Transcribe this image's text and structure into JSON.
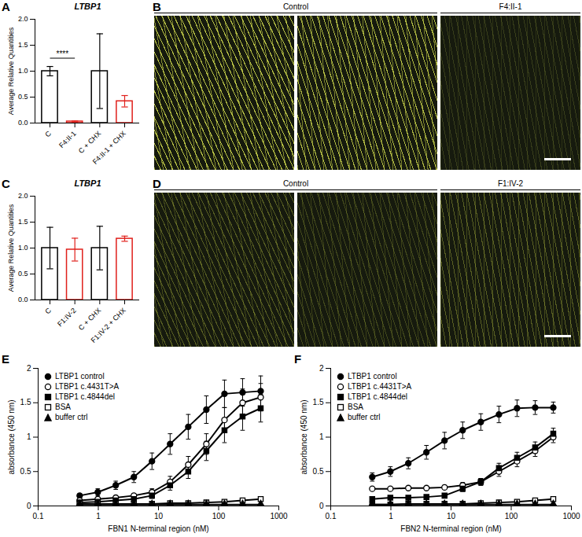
{
  "chart_data": [
    {
      "panel": "A",
      "type": "bar",
      "title": "LTBP1",
      "y_label": "Average Relative Quantities",
      "categories": [
        "C",
        "F4:II-1",
        "C + CHX",
        "F4:II-1 + CHX"
      ],
      "values": [
        1.0,
        0.03,
        1.0,
        0.42
      ],
      "errors": [
        0.09,
        0.01,
        0.72,
        0.11
      ],
      "colors": [
        "#000000",
        "#e0201b",
        "#000000",
        "#e0201b"
      ],
      "ylim": [
        0,
        2
      ],
      "yticks": [
        {
          "value": 0,
          "label": "0.0"
        },
        {
          "value": 0.5,
          "label": "0.5"
        },
        {
          "value": 1,
          "label": "1.0"
        },
        {
          "value": 1.5,
          "label": "1.5"
        },
        {
          "value": 2,
          "label": "2.0"
        }
      ],
      "annotations": [
        {
          "text": "****",
          "from": "C",
          "to": "F4:II-1",
          "y": 1.25
        }
      ]
    },
    {
      "panel": "B",
      "type": "image",
      "groups": [
        {
          "label": "Control",
          "images": 2
        },
        {
          "label": "F4:II-1",
          "images": 1
        }
      ]
    },
    {
      "panel": "C",
      "type": "bar",
      "title": "LTBP1",
      "y_label": "Average Relative Quantities",
      "categories": [
        "C",
        "F1:IV-2",
        "C + CHX",
        "F1:IV-2 + CHX"
      ],
      "values": [
        1.0,
        0.97,
        1.0,
        1.18
      ],
      "errors": [
        0.4,
        0.22,
        0.42,
        0.05
      ],
      "colors": [
        "#000000",
        "#e0201b",
        "#000000",
        "#e0201b"
      ],
      "ylim": [
        0,
        2
      ],
      "yticks": [
        {
          "value": 0,
          "label": "0.0"
        },
        {
          "value": 0.5,
          "label": "0.5"
        },
        {
          "value": 1,
          "label": "1.0"
        },
        {
          "value": 1.5,
          "label": "1.5"
        },
        {
          "value": 2,
          "label": "2.0"
        }
      ]
    },
    {
      "panel": "D",
      "type": "image",
      "groups": [
        {
          "label": "Control",
          "images": 2
        },
        {
          "label": "F1:IV-2",
          "images": 1
        }
      ]
    },
    {
      "panel": "E",
      "type": "line",
      "x_label": "FBN1 N-terminal region (nM)",
      "y_label": "absorbance (450 nm)",
      "log": "x",
      "xlim": [
        0.1,
        1000
      ],
      "xticks": [
        0.1,
        1,
        10,
        100,
        1000
      ],
      "ylim": [
        0,
        2
      ],
      "yticks": [
        0,
        0.5,
        1,
        1.5,
        2
      ],
      "legend": "top-left",
      "x": [
        0.49,
        0.98,
        1.95,
        3.9,
        7.8,
        15.6,
        31.25,
        62.5,
        125,
        250,
        500
      ],
      "series": [
        {
          "name": "LTBP1 control",
          "marker": "circle",
          "values": [
            0.15,
            0.2,
            0.3,
            0.42,
            0.65,
            0.9,
            1.15,
            1.4,
            1.63,
            1.65,
            1.67
          ],
          "errors": [
            0.03,
            0.05,
            0.06,
            0.08,
            0.12,
            0.15,
            0.18,
            0.2,
            0.2,
            0.2,
            0.22
          ]
        },
        {
          "name": "LTBP1 c.4431T>A",
          "marker": "circle-open",
          "values": [
            0.08,
            0.1,
            0.12,
            0.15,
            0.2,
            0.35,
            0.6,
            0.9,
            1.25,
            1.5,
            1.58
          ],
          "errors": [
            0.02,
            0.02,
            0.03,
            0.03,
            0.05,
            0.08,
            0.12,
            0.15,
            0.18,
            0.2,
            0.2
          ]
        },
        {
          "name": "LTBP1 c.4844del",
          "marker": "square",
          "values": [
            0.05,
            0.06,
            0.08,
            0.1,
            0.15,
            0.3,
            0.5,
            0.8,
            1.1,
            1.3,
            1.42
          ],
          "errors": [
            0.02,
            0.02,
            0.02,
            0.03,
            0.04,
            0.07,
            0.1,
            0.14,
            0.18,
            0.2,
            0.2
          ]
        },
        {
          "name": "BSA",
          "marker": "square-open",
          "values": [
            0.03,
            0.03,
            0.03,
            0.03,
            0.03,
            0.04,
            0.04,
            0.05,
            0.06,
            0.08,
            0.1
          ],
          "errors": [
            0.01,
            0.01,
            0.01,
            0.01,
            0.01,
            0.01,
            0.01,
            0.01,
            0.01,
            0.02,
            0.02
          ]
        },
        {
          "name": "buffer ctrl",
          "marker": "triangle",
          "values": [
            0.02,
            0.02,
            0.02,
            0.02,
            0.02,
            0.02,
            0.02,
            0.02,
            0.02,
            0.02,
            0.02
          ],
          "errors": [
            0.005,
            0.005,
            0.005,
            0.005,
            0.005,
            0.005,
            0.005,
            0.005,
            0.005,
            0.005,
            0.005
          ]
        }
      ]
    },
    {
      "panel": "F",
      "type": "line",
      "x_label": "FBN2 N-terminal region (nM)",
      "y_label": "absorbance (450 nm)",
      "log": "x",
      "xlim": [
        0.1,
        1000
      ],
      "xticks": [
        0.1,
        1,
        10,
        100,
        1000
      ],
      "ylim": [
        0,
        2
      ],
      "yticks": [
        0,
        0.5,
        1,
        1.5,
        2
      ],
      "legend": "top-left",
      "x": [
        0.49,
        0.98,
        1.95,
        3.9,
        7.8,
        15.6,
        31.25,
        62.5,
        125,
        250,
        500
      ],
      "series": [
        {
          "name": "LTBP1 control",
          "marker": "circle",
          "values": [
            0.42,
            0.5,
            0.62,
            0.78,
            0.95,
            1.1,
            1.22,
            1.33,
            1.42,
            1.43,
            1.43
          ],
          "errors": [
            0.06,
            0.07,
            0.08,
            0.1,
            0.12,
            0.12,
            0.12,
            0.12,
            0.12,
            0.1,
            0.08
          ]
        },
        {
          "name": "LTBP1 c.4431T>A",
          "marker": "circle-open",
          "values": [
            0.25,
            0.25,
            0.26,
            0.26,
            0.27,
            0.3,
            0.35,
            0.5,
            0.65,
            0.8,
            1.0
          ],
          "errors": [
            0.02,
            0.02,
            0.02,
            0.02,
            0.03,
            0.04,
            0.05,
            0.07,
            0.08,
            0.08,
            0.08
          ]
        },
        {
          "name": "LTBP1 c.4844del",
          "marker": "square",
          "values": [
            0.1,
            0.12,
            0.12,
            0.13,
            0.15,
            0.25,
            0.35,
            0.55,
            0.7,
            0.85,
            1.05
          ],
          "errors": [
            0.02,
            0.02,
            0.02,
            0.02,
            0.03,
            0.04,
            0.05,
            0.07,
            0.08,
            0.08,
            0.08
          ]
        },
        {
          "name": "BSA",
          "marker": "square-open",
          "values": [
            0.02,
            0.02,
            0.03,
            0.03,
            0.03,
            0.03,
            0.04,
            0.05,
            0.06,
            0.08,
            0.1
          ],
          "errors": [
            0.01,
            0.01,
            0.01,
            0.01,
            0.01,
            0.01,
            0.01,
            0.01,
            0.01,
            0.02,
            0.02
          ]
        },
        {
          "name": "buffer ctrl",
          "marker": "triangle",
          "values": [
            0.02,
            0.02,
            0.02,
            0.02,
            0.02,
            0.02,
            0.02,
            0.02,
            0.02,
            0.02,
            0.02
          ],
          "errors": [
            0.005,
            0.005,
            0.005,
            0.005,
            0.005,
            0.005,
            0.005,
            0.005,
            0.005,
            0.005,
            0.005
          ]
        }
      ]
    }
  ]
}
